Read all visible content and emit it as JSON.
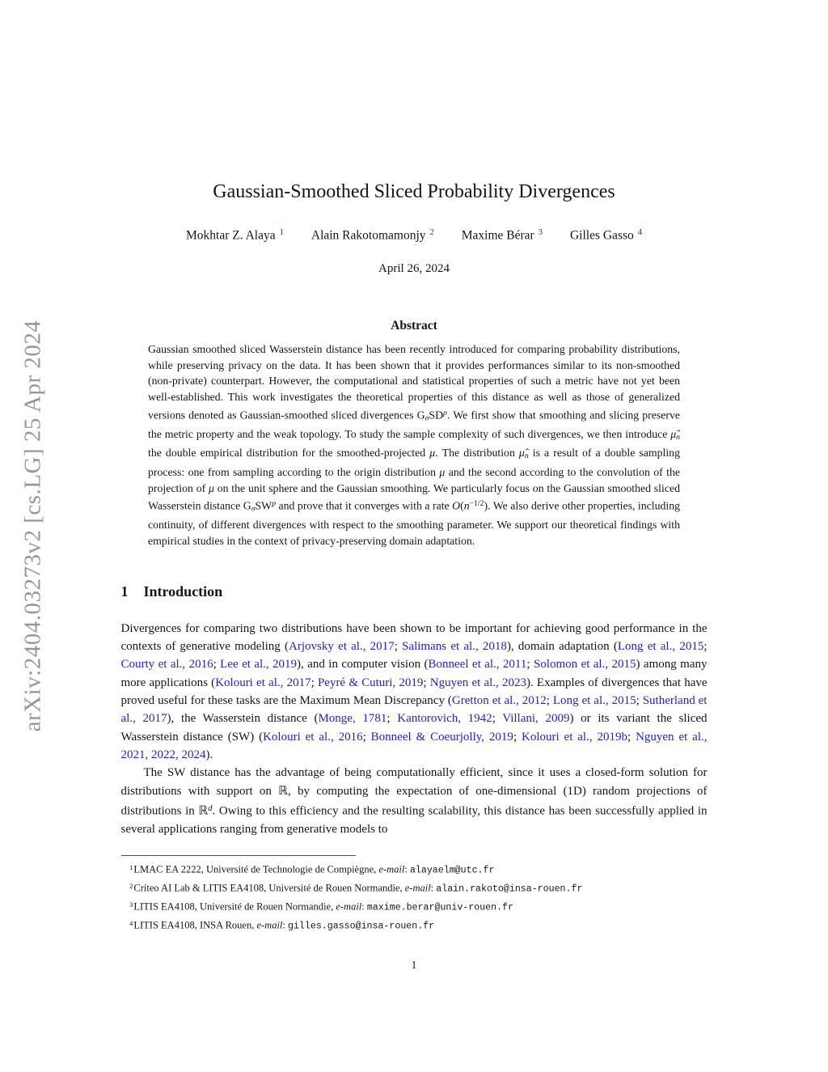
{
  "colors": {
    "link": "#2323cc",
    "watermark": "#979797",
    "text": "#151515"
  },
  "watermark": {
    "text": "arXiv:2404.03273v2  [cs.LG]  25 Apr 2024"
  },
  "header": {
    "title": "Gaussian-Smoothed Sliced Probability Divergences",
    "authors": [
      {
        "name": "Mokhtar Z. Alaya",
        "sup": "1"
      },
      {
        "name": "Alain Rakotomamonjy",
        "sup": "2"
      },
      {
        "name": "Maxime Bérar",
        "sup": "3"
      },
      {
        "name": "Gilles Gasso",
        "sup": "4"
      }
    ],
    "date": "April 26, 2024"
  },
  "abstract": {
    "heading": "Abstract",
    "body": [
      {
        "t": "Gaussian smoothed sliced Wasserstein distance has been recently introduced for comparing probability distributions, while preserving privacy on the data. It has been shown that it provides performances similar to its non-smoothed (non-private) counterpart. However, the computational and statistical properties of such a metric have not yet been well-established. This work investigates the theoretical properties of this distance as well as those of generalized versions denoted as Gaussian-smoothed sliced divergences G"
      },
      {
        "t": "σ",
        "s": "sub"
      },
      {
        "t": "SD"
      },
      {
        "t": "p",
        "s": "supm"
      },
      {
        "t": ". We first show that smoothing and slicing preserve the metric property and the weak topology. To study the sample complexity of such divergences, we then introduce "
      },
      {
        "t": "μ̂",
        "s": "math"
      },
      {
        "t": "n",
        "s": "sub"
      },
      {
        "t": " the double empirical distribution for the smoothed-projected "
      },
      {
        "t": "μ",
        "s": "math"
      },
      {
        "t": ". The distribution "
      },
      {
        "t": "μ̂",
        "s": "math"
      },
      {
        "t": "n",
        "s": "sub"
      },
      {
        "t": " is a result of a double sampling process: one from sampling according to the origin distribution "
      },
      {
        "t": "μ",
        "s": "math"
      },
      {
        "t": " and the second according to the convolution of the projection of "
      },
      {
        "t": "μ",
        "s": "math"
      },
      {
        "t": " on the unit sphere and the Gaussian smoothing. We particularly focus on the Gaussian smoothed sliced Wasserstein distance G"
      },
      {
        "t": "σ",
        "s": "sub"
      },
      {
        "t": "SW"
      },
      {
        "t": "p",
        "s": "supm"
      },
      {
        "t": " and prove that it converges with a rate "
      },
      {
        "t": "O",
        "s": "math"
      },
      {
        "t": "("
      },
      {
        "t": "n",
        "s": "math"
      },
      {
        "t": "−1/2",
        "s": "sup"
      },
      {
        "t": "). We also derive other properties, including continuity, of different divergences with respect to the smoothing parameter. We support our theoretical findings with empirical studies in the context of privacy-preserving domain adaptation."
      }
    ]
  },
  "intro": {
    "number": "1",
    "title": "Introduction",
    "paragraphs": [
      [
        {
          "t": "Divergences for comparing two distributions have been shown to be important for achieving good performance in the contexts of generative modeling ("
        },
        {
          "t": "Arjovsky et al., 2017",
          "s": "link"
        },
        {
          "t": "; "
        },
        {
          "t": "Salimans et al., 2018",
          "s": "link"
        },
        {
          "t": "), domain adaptation ("
        },
        {
          "t": "Long et al., 2015",
          "s": "link"
        },
        {
          "t": "; "
        },
        {
          "t": "Courty et al., 2016",
          "s": "link"
        },
        {
          "t": "; "
        },
        {
          "t": "Lee et al., 2019",
          "s": "link"
        },
        {
          "t": "), and in computer vision ("
        },
        {
          "t": "Bonneel et al., 2011",
          "s": "link"
        },
        {
          "t": "; "
        },
        {
          "t": "Solomon et al., 2015",
          "s": "link"
        },
        {
          "t": ") among many more applications ("
        },
        {
          "t": "Kolouri et al., 2017",
          "s": "link"
        },
        {
          "t": "; "
        },
        {
          "t": "Peyré & Cuturi, 2019",
          "s": "link"
        },
        {
          "t": "; "
        },
        {
          "t": "Nguyen et al., 2023",
          "s": "link"
        },
        {
          "t": ").  Examples of divergences that have proved useful for these tasks are the Maximum Mean Discrepancy ("
        },
        {
          "t": "Gretton et al., 2012",
          "s": "link"
        },
        {
          "t": "; "
        },
        {
          "t": "Long et al., 2015",
          "s": "link"
        },
        {
          "t": "; "
        },
        {
          "t": "Sutherland et al., 2017",
          "s": "link"
        },
        {
          "t": "), the Wasserstein distance ("
        },
        {
          "t": "Monge, 1781",
          "s": "link"
        },
        {
          "t": "; "
        },
        {
          "t": "Kantorovich, 1942",
          "s": "link"
        },
        {
          "t": "; "
        },
        {
          "t": "Villani, 2009",
          "s": "link"
        },
        {
          "t": ") or its variant the sliced Wasserstein distance (SW) ("
        },
        {
          "t": "Kolouri et al., 2016",
          "s": "link"
        },
        {
          "t": "; "
        },
        {
          "t": "Bonneel & Coeurjolly, 2019",
          "s": "link"
        },
        {
          "t": "; "
        },
        {
          "t": "Kolouri et al., 2019b",
          "s": "link"
        },
        {
          "t": "; "
        },
        {
          "t": "Nguyen et al., 2021, 2022, 2024",
          "s": "link"
        },
        {
          "t": ")."
        }
      ],
      [
        {
          "t": "The SW distance has the advantage of being computationally efficient, since it uses a closed-form solution for distributions with support on "
        },
        {
          "t": "ℝ"
        },
        {
          "t": ", by computing the expectation of one-dimensional (1D) random projections of distributions in "
        },
        {
          "t": "ℝ"
        },
        {
          "t": "d",
          "s": "supm"
        },
        {
          "t": ". Owing to this efficiency and the resulting scalability, this distance has been successfully applied in several applications ranging from generative models to"
        }
      ]
    ]
  },
  "footnotes": {
    "items": [
      [
        {
          "t": "1",
          "s": "fnsup"
        },
        {
          "t": "LMAC EA 2222, Université de Technologie de Compiègne, "
        },
        {
          "t": "e-mail",
          "s": "italic"
        },
        {
          "t": ": "
        },
        {
          "t": "alayaelm@utc.fr",
          "s": "mono"
        }
      ],
      [
        {
          "t": "2",
          "s": "fnsup"
        },
        {
          "t": "Criteo AI Lab & LITIS EA4108, Université de Rouen Normandie, "
        },
        {
          "t": "e-mail",
          "s": "italic"
        },
        {
          "t": ": "
        },
        {
          "t": "alain.rakoto@insa-rouen.fr",
          "s": "mono"
        }
      ],
      [
        {
          "t": "3",
          "s": "fnsup"
        },
        {
          "t": "LITIS EA4108, Université de Rouen Normandie, "
        },
        {
          "t": "e-mail",
          "s": "italic"
        },
        {
          "t": ": "
        },
        {
          "t": "maxime.berar@univ-rouen.fr",
          "s": "mono"
        }
      ],
      [
        {
          "t": "4",
          "s": "fnsup"
        },
        {
          "t": "LITIS EA4108, INSA Rouen, "
        },
        {
          "t": "e-mail",
          "s": "italic"
        },
        {
          "t": ": "
        },
        {
          "t": "gilles.gasso@insa-rouen.fr",
          "s": "mono"
        }
      ]
    ]
  },
  "footer": {
    "page_number": "1"
  }
}
